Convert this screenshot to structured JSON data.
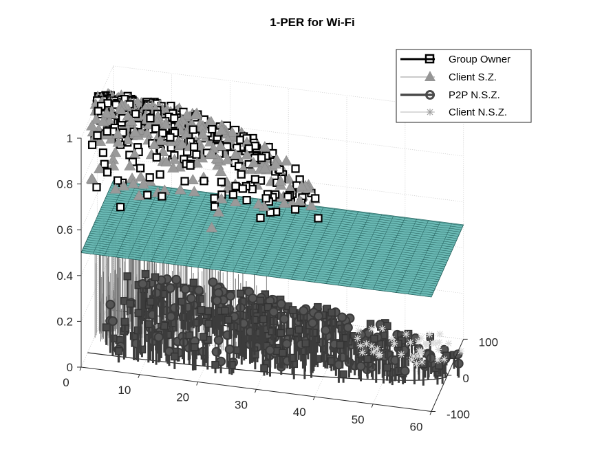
{
  "chart_data": {
    "type": "scatter",
    "title": "1-PER for Wi-Fi",
    "projection": "3d",
    "grid": true,
    "legend_location": "top-right",
    "axes": {
      "x": {
        "lim": [
          0,
          60
        ],
        "ticks": [
          "0",
          "10",
          "20",
          "30",
          "40",
          "50",
          "60"
        ],
        "values": [
          0,
          10,
          20,
          30,
          40,
          50,
          60
        ]
      },
      "y": {
        "lim": [
          -100,
          100
        ],
        "ticks": [
          "-100",
          "0",
          "100"
        ],
        "values": [
          -100,
          0,
          100
        ]
      },
      "z": {
        "lim": [
          0,
          1
        ],
        "ticks": [
          "0",
          "0.2",
          "0.4",
          "0.6",
          "0.8",
          "1"
        ],
        "values": [
          0,
          0.2,
          0.4,
          0.6,
          0.8,
          1
        ]
      }
    },
    "surface": {
      "description": "flat mesh plane",
      "z": 0.5,
      "color": "#1fa39a"
    },
    "series": [
      {
        "name": "Group Owner",
        "marker": "square",
        "line": "thick",
        "color": "#000000"
      },
      {
        "name": "Client S.Z.",
        "marker": "triangle",
        "line": "thin",
        "color": "#959595"
      },
      {
        "name": "P2P N.S.Z.",
        "marker": "circle",
        "line": "thick",
        "color": "#4a4a4a"
      },
      {
        "name": "Client N.S.Z.",
        "marker": "star",
        "line": "thin",
        "color": "#b4b4b4"
      }
    ]
  }
}
